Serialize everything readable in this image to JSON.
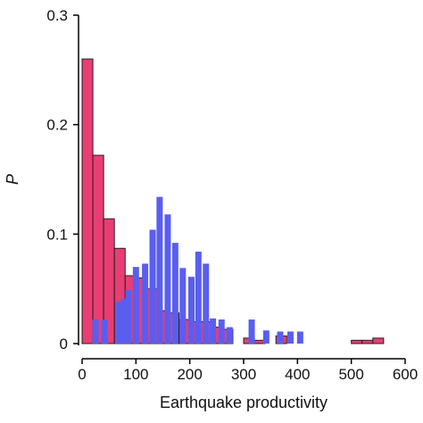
{
  "chart_data": {
    "type": "bar",
    "xlabel": "Earthquake productivity",
    "ylabel": "P",
    "xlim": [
      0,
      600
    ],
    "ylim": [
      0,
      0.3
    ],
    "xticks": [
      "0",
      "100",
      "200",
      "300",
      "400",
      "500",
      "600"
    ],
    "yticks": [
      "0",
      "0.1",
      "0.2",
      "0.3"
    ],
    "grid": false,
    "legend": "none",
    "series": [
      {
        "color": "#e83e73",
        "bin_width": 20,
        "points": [
          {
            "x": 10,
            "y": 0.26
          },
          {
            "x": 30,
            "y": 0.172
          },
          {
            "x": 50,
            "y": 0.114
          },
          {
            "x": 70,
            "y": 0.087
          },
          {
            "x": 90,
            "y": 0.062
          },
          {
            "x": 110,
            "y": 0.06
          },
          {
            "x": 130,
            "y": 0.05
          },
          {
            "x": 150,
            "y": 0.03
          },
          {
            "x": 170,
            "y": 0.028
          },
          {
            "x": 190,
            "y": 0.022
          },
          {
            "x": 210,
            "y": 0.02
          },
          {
            "x": 230,
            "y": 0.02
          },
          {
            "x": 250,
            "y": 0.015
          },
          {
            "x": 270,
            "y": 0.013
          },
          {
            "x": 310,
            "y": 0.005
          },
          {
            "x": 330,
            "y": 0.003
          },
          {
            "x": 370,
            "y": 0.007
          },
          {
            "x": 510,
            "y": 0.003
          },
          {
            "x": 530,
            "y": 0.003
          },
          {
            "x": 550,
            "y": 0.005
          }
        ]
      },
      {
        "color": "#5a5ef0",
        "bar_width": 7,
        "points": [
          {
            "x": 25,
            "y": 0.022
          },
          {
            "x": 42,
            "y": 0.022
          },
          {
            "x": 67,
            "y": 0.038
          },
          {
            "x": 78,
            "y": 0.041
          },
          {
            "x": 86,
            "y": 0.049
          },
          {
            "x": 100,
            "y": 0.07
          },
          {
            "x": 117,
            "y": 0.073
          },
          {
            "x": 131,
            "y": 0.104
          },
          {
            "x": 144,
            "y": 0.134
          },
          {
            "x": 159,
            "y": 0.118
          },
          {
            "x": 173,
            "y": 0.092
          },
          {
            "x": 187,
            "y": 0.069
          },
          {
            "x": 203,
            "y": 0.061
          },
          {
            "x": 216,
            "y": 0.084
          },
          {
            "x": 230,
            "y": 0.073
          },
          {
            "x": 243,
            "y": 0.023
          },
          {
            "x": 259,
            "y": 0.022
          },
          {
            "x": 274,
            "y": 0.015
          },
          {
            "x": 315,
            "y": 0.022
          },
          {
            "x": 342,
            "y": 0.012
          },
          {
            "x": 368,
            "y": 0.011
          },
          {
            "x": 387,
            "y": 0.011
          },
          {
            "x": 405,
            "y": 0.011
          }
        ]
      }
    ]
  }
}
